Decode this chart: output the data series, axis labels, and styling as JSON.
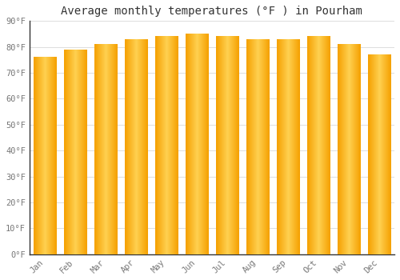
{
  "title": "Average monthly temperatures (°F ) in Pourham",
  "months": [
    "Jan",
    "Feb",
    "Mar",
    "Apr",
    "May",
    "Jun",
    "Jul",
    "Aug",
    "Sep",
    "Oct",
    "Nov",
    "Dec"
  ],
  "values": [
    76,
    79,
    81,
    83,
    84,
    85,
    84,
    83,
    83,
    84,
    81,
    77
  ],
  "bar_color_center": "#FFD050",
  "bar_color_edge": "#F5A000",
  "background_color": "#FFFFFF",
  "plot_bg_color": "#FFFFFF",
  "grid_color": "#DDDDDD",
  "ylim": [
    0,
    90
  ],
  "yticks": [
    0,
    10,
    20,
    30,
    40,
    50,
    60,
    70,
    80,
    90
  ],
  "ytick_labels": [
    "0°F",
    "10°F",
    "20°F",
    "30°F",
    "40°F",
    "50°F",
    "60°F",
    "70°F",
    "80°F",
    "90°F"
  ],
  "title_fontsize": 10,
  "tick_fontsize": 7.5,
  "bar_width": 0.75,
  "tick_font_family": "monospace",
  "spine_color": "#333333"
}
